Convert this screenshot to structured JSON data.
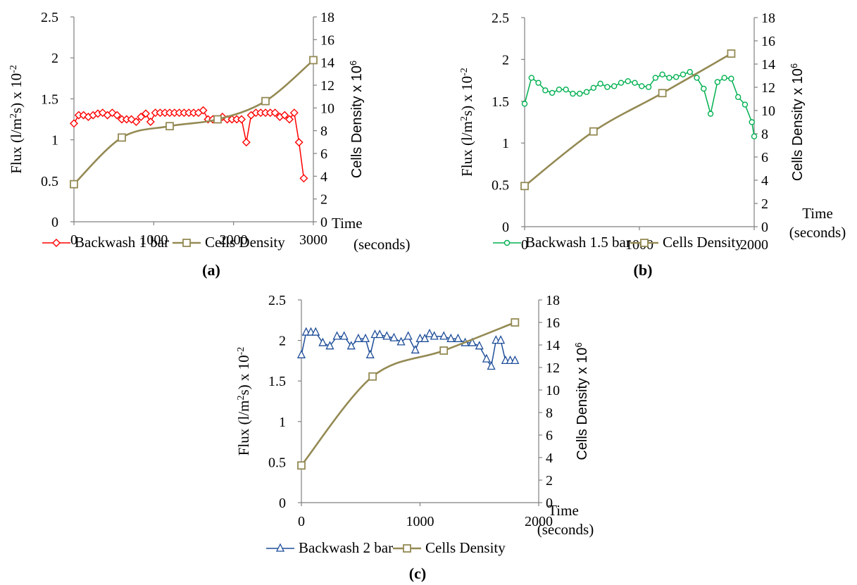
{
  "chart_data": [
    {
      "type": "line",
      "caption": "(a)",
      "ylabel_left": "Flux (l/m2s) x 10-2",
      "ylabel_right": "Cells Density x 106",
      "xlabel": "Time (seconds)",
      "xlim": [
        0,
        3000
      ],
      "ylim_left": [
        0,
        2.5
      ],
      "ylim_right": [
        0,
        18
      ],
      "x_ticks": [
        "0",
        "1000",
        "2000",
        "3000"
      ],
      "y_left_ticks": [
        "0",
        "0.5",
        "1",
        "1.5",
        "2",
        "2.5"
      ],
      "y_right_ticks": [
        "0",
        "2",
        "4",
        "6",
        "8",
        "10",
        "12",
        "14",
        "16",
        "18"
      ],
      "series": [
        {
          "name": "Backwash 1 bar",
          "axis": "left",
          "color": "#ff0000",
          "marker": "diamond",
          "x": [
            0,
            60,
            120,
            180,
            240,
            300,
            360,
            420,
            480,
            540,
            600,
            660,
            720,
            780,
            840,
            900,
            960,
            1020,
            1080,
            1140,
            1200,
            1260,
            1320,
            1380,
            1440,
            1500,
            1560,
            1620,
            1680,
            1740,
            1800,
            1860,
            1920,
            1980,
            2040,
            2100,
            2160,
            2220,
            2280,
            2340,
            2400,
            2460,
            2520,
            2580,
            2640,
            2700,
            2760,
            2820,
            2880
          ],
          "values": [
            1.2,
            1.3,
            1.3,
            1.28,
            1.3,
            1.32,
            1.33,
            1.3,
            1.33,
            1.3,
            1.25,
            1.25,
            1.25,
            1.22,
            1.28,
            1.32,
            1.22,
            1.33,
            1.33,
            1.33,
            1.33,
            1.33,
            1.33,
            1.33,
            1.33,
            1.33,
            1.33,
            1.36,
            1.25,
            1.25,
            1.25,
            1.28,
            1.25,
            1.25,
            1.25,
            1.25,
            0.97,
            1.3,
            1.33,
            1.33,
            1.33,
            1.33,
            1.33,
            1.28,
            1.3,
            1.25,
            1.33,
            0.97,
            0.53
          ]
        },
        {
          "name": "Cells Density",
          "axis": "right",
          "color": "#948a54",
          "marker": "square",
          "x": [
            0,
            600,
            1200,
            1800,
            2400,
            3000
          ],
          "values": [
            3.3,
            7.4,
            8.4,
            9.0,
            10.6,
            14.2
          ]
        }
      ]
    },
    {
      "type": "line",
      "caption": "(b)",
      "ylabel_left": "Flux (l/m2s) x 10-2",
      "ylabel_right": "Cells Density x 106",
      "xlabel": "Time (seconds)",
      "xlim": [
        0,
        2000
      ],
      "ylim_left": [
        0,
        2.5
      ],
      "ylim_right": [
        0,
        18
      ],
      "x_ticks": [
        "0",
        "1000",
        "2000"
      ],
      "y_left_ticks": [
        "0",
        "0.5",
        "1",
        "1.5",
        "2",
        "2.5"
      ],
      "y_right_ticks": [
        "0",
        "2",
        "4",
        "6",
        "8",
        "10",
        "12",
        "14",
        "16",
        "18"
      ],
      "series": [
        {
          "name": "Backwash 1.5 bar",
          "axis": "left",
          "color": "#00b050",
          "marker": "circle",
          "x": [
            0,
            60,
            120,
            180,
            240,
            300,
            360,
            420,
            480,
            540,
            600,
            660,
            720,
            780,
            840,
            900,
            960,
            1020,
            1080,
            1140,
            1200,
            1260,
            1320,
            1380,
            1440,
            1500,
            1560,
            1620,
            1680,
            1740,
            1800,
            1860,
            1920,
            1980,
            2000
          ],
          "values": [
            1.47,
            1.78,
            1.72,
            1.63,
            1.6,
            1.64,
            1.64,
            1.59,
            1.59,
            1.61,
            1.66,
            1.71,
            1.67,
            1.68,
            1.72,
            1.74,
            1.72,
            1.68,
            1.67,
            1.78,
            1.82,
            1.78,
            1.79,
            1.82,
            1.85,
            1.78,
            1.65,
            1.35,
            1.73,
            1.78,
            1.77,
            1.55,
            1.46,
            1.25,
            1.08
          ]
        },
        {
          "name": "Cells Density",
          "axis": "right",
          "color": "#948a54",
          "marker": "square",
          "x": [
            0,
            600,
            1200,
            1800
          ],
          "values": [
            3.5,
            8.2,
            11.5,
            14.9
          ]
        }
      ]
    },
    {
      "type": "line",
      "caption": "(c)",
      "ylabel_left": "Flux (l/m2s) x 10-2",
      "ylabel_right": "Cells Density x 106",
      "xlabel": "Time (seconds)",
      "xlim": [
        0,
        2000
      ],
      "ylim_left": [
        0,
        2.5
      ],
      "ylim_right": [
        0,
        18
      ],
      "x_ticks": [
        "0",
        "1000",
        "2000"
      ],
      "y_left_ticks": [
        "0",
        "0.5",
        "1",
        "1.5",
        "2",
        "2.5"
      ],
      "y_right_ticks": [
        "0",
        "2",
        "4",
        "6",
        "8",
        "10",
        "12",
        "14",
        "16",
        "18"
      ],
      "series": [
        {
          "name": "Backwash 2 bar",
          "axis": "left",
          "color": "#1f4e99",
          "marker": "triangle",
          "x": [
            0,
            40,
            80,
            120,
            180,
            240,
            300,
            360,
            420,
            480,
            540,
            580,
            620,
            660,
            720,
            780,
            840,
            900,
            960,
            1000,
            1040,
            1080,
            1120,
            1200,
            1260,
            1320,
            1380,
            1440,
            1500,
            1560,
            1600,
            1640,
            1680,
            1720,
            1760,
            1800
          ],
          "values": [
            1.82,
            2.1,
            2.1,
            2.1,
            1.97,
            1.93,
            2.05,
            2.05,
            1.93,
            2.02,
            2.02,
            1.82,
            2.07,
            2.07,
            2.05,
            2.03,
            1.98,
            2.05,
            1.88,
            2.02,
            2.02,
            2.08,
            2.05,
            2.05,
            2.02,
            2.02,
            1.97,
            1.97,
            1.93,
            1.77,
            1.68,
            2.0,
            2.0,
            1.75,
            1.75,
            1.75
          ]
        },
        {
          "name": "Cells Density",
          "axis": "right",
          "color": "#948a54",
          "marker": "square",
          "x": [
            0,
            600,
            1200,
            1800
          ],
          "values": [
            3.3,
            11.2,
            13.5,
            16.0
          ]
        }
      ]
    }
  ],
  "labels": {
    "flux_base": "Flux (l/m",
    "flux_sup": "2",
    "flux_mid": "s) x 10",
    "flux_exp": "-2",
    "cells_base": "Cells Density x 10",
    "cells_exp": "6",
    "time_word": "Time",
    "seconds_word": "(seconds)"
  }
}
